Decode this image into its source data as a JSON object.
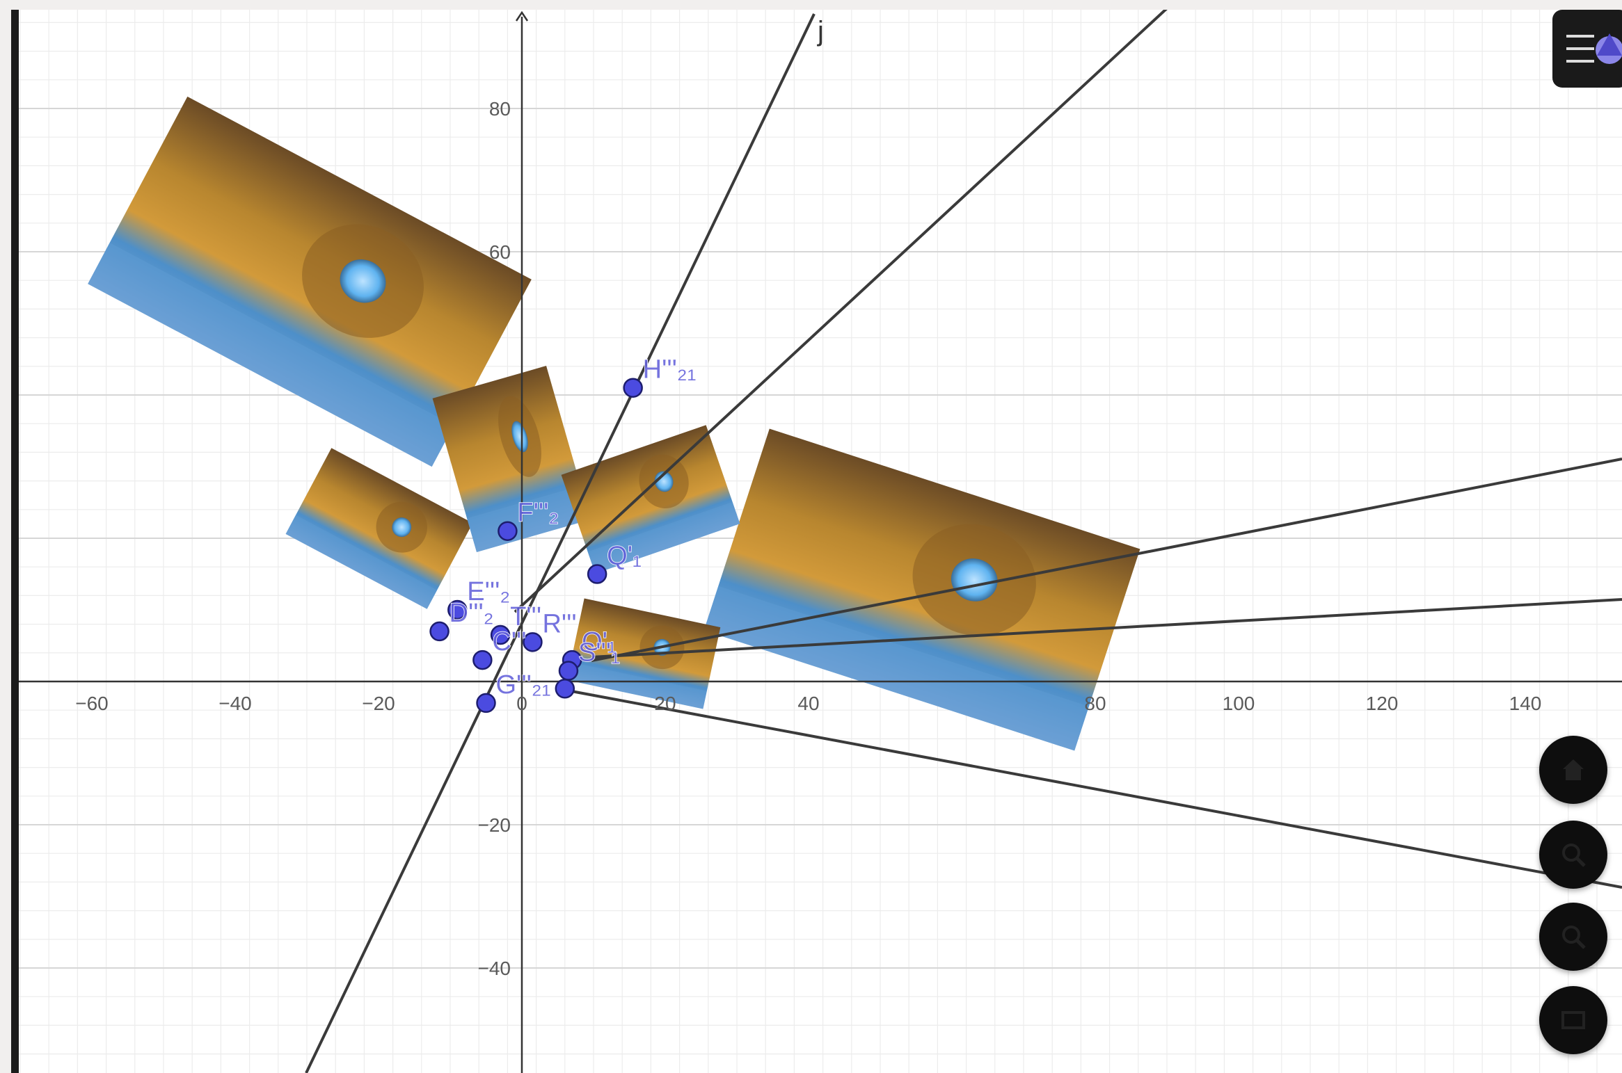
{
  "axes": {
    "x_tick_labels": [
      "−60",
      "−40",
      "−20",
      "0",
      "20",
      "40",
      "80",
      "100",
      "120",
      "140"
    ],
    "x_tick_values": [
      -60,
      -40,
      -20,
      0,
      20,
      40,
      80,
      100,
      120,
      140
    ],
    "y_tick_labels": [
      "80",
      "60",
      "−20",
      "−40"
    ],
    "y_tick_values": [
      80,
      60,
      -20,
      -40
    ],
    "x_range": [
      -70,
      155
    ],
    "y_range": [
      -55,
      95
    ]
  },
  "lines": [
    {
      "name": "j",
      "label": "j"
    },
    {
      "name": "line-steep-2"
    },
    {
      "name": "line-right-upper"
    },
    {
      "name": "line-right-middle"
    },
    {
      "name": "line-right-lower"
    }
  ],
  "points": [
    {
      "name": "H'''21",
      "label": "H'''₂₁",
      "x": 15.5,
      "y": 41
    },
    {
      "name": "F'''2",
      "label": "F'''₂",
      "x": -2,
      "y": 21
    },
    {
      "name": "Q'1",
      "label": "Q'₁",
      "x": 10.5,
      "y": 15
    },
    {
      "name": "E'''2",
      "label": "E'''₂",
      "x": -9,
      "y": 10
    },
    {
      "name": "D'''2",
      "label": "D'''₂",
      "x": -11.5,
      "y": 7
    },
    {
      "name": "T'''",
      "label": "T'''",
      "x": -3,
      "y": 6.5
    },
    {
      "name": "R'''",
      "label": "R'''",
      "x": 1.5,
      "y": 5.5
    },
    {
      "name": "O'1",
      "label": "O'₁",
      "x": 7,
      "y": 3
    },
    {
      "name": "C'''",
      "label": "C'''",
      "x": -5.5,
      "y": 3
    },
    {
      "name": "S'''1",
      "label": "S'''₁",
      "x": 6.5,
      "y": 1.5
    },
    {
      "name": "G'''21",
      "label": "G'''₂₁",
      "x": -5,
      "y": -3
    },
    {
      "name": "origin-point",
      "label": "",
      "x": 6,
      "y": -1
    }
  ],
  "colors": {
    "axis": "#333333",
    "grid_major": "#d6d6d6",
    "grid_minor": "#ececec",
    "point_fill": "#4b4be0",
    "point_stroke": "#1d1d6e",
    "line": "#3a3a3a"
  },
  "controls": {
    "style_bar": "style-bar-toggle-icon",
    "home": "home-icon",
    "zoom_in": "zoom-in-icon",
    "zoom_out": "zoom-out-icon",
    "fullscreen": "fullscreen-icon"
  }
}
